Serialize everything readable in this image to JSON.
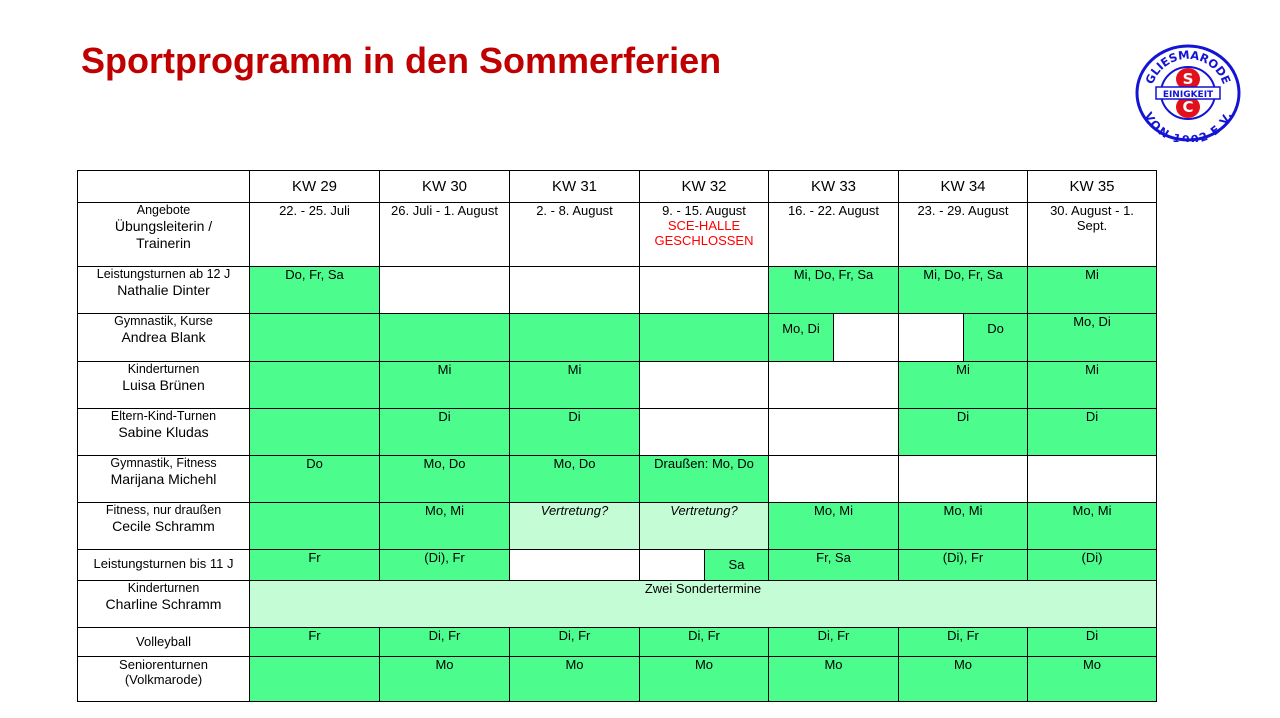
{
  "title": "Sportprogramm in den Sommerferien",
  "logo": {
    "top_text": "GLIESMARODE",
    "middle_text": "EINIGKEIT",
    "bottom_text": "VON 1902 E.V.",
    "letters": [
      "S",
      "C"
    ]
  },
  "colors": {
    "title": "#c00000",
    "green": "#4cfc8c",
    "light_green": "#c4fcd6",
    "logo_blue": "#1414d4",
    "logo_red": "#e0101c"
  },
  "weeks": [
    "KW 29",
    "KW 30",
    "KW 31",
    "KW 32",
    "KW 33",
    "KW 34",
    "KW 35"
  ],
  "dates": [
    "22. - 25. Juli",
    "26. Juli - 1. August",
    "2. - 8. August",
    "9. - 15. August",
    "16. - 22. August",
    "23. - 29. August",
    "30. August - 1. Sept."
  ],
  "kw32_note_line1": "SCE-HALLE",
  "kw32_note_line2": "GESCHLOSSEN",
  "header_label": {
    "line1": "Angebote",
    "line2": "Übungsleiterin /",
    "line3": "Trainerin"
  },
  "rows": {
    "leistung12": {
      "sub": "Leistungsturnen ab 12 J",
      "name": "Nathalie Dinter",
      "kw29": "Do, Fr, Sa",
      "kw33": "Mi, Do, Fr, Sa",
      "kw34": "Mi, Do, Fr, Sa",
      "kw35": "Mi"
    },
    "gymkurse": {
      "sub": "Gymnastik, Kurse",
      "name": "Andrea Blank",
      "kw33a": "Mo, Di",
      "kw34b": "Do",
      "kw35": "Mo, Di"
    },
    "kinder": {
      "sub": "Kinderturnen",
      "name": "Luisa Brünen",
      "kw30": "Mi",
      "kw31": "Mi",
      "kw34": "Mi",
      "kw35": "Mi"
    },
    "eltern": {
      "sub": "Eltern-Kind-Turnen",
      "name": "Sabine Kludas",
      "kw30": "Di",
      "kw31": "Di",
      "kw34": "Di",
      "kw35": "Di"
    },
    "gymfit": {
      "sub": "Gymnastik, Fitness",
      "name": "Marijana Michehl",
      "kw29": "Do",
      "kw30": "Mo, Do",
      "kw31": "Mo, Do",
      "kw32": "Draußen: Mo, Do"
    },
    "fitness": {
      "sub": "Fitness, nur draußen",
      "name": "Cecile Schramm",
      "kw30": "Mo, Mi",
      "kw31": "Vertretung?",
      "kw32": "Vertretung?",
      "kw33": "Mo, Mi",
      "kw34": "Mo, Mi",
      "kw35": "Mo, Mi"
    },
    "leistung11": {
      "sub": "Leistungsturnen bis 11 J",
      "kw29": "Fr",
      "kw30": "(Di), Fr",
      "kw32b": "Sa",
      "kw33": "Fr, Sa",
      "kw34": "(Di), Fr",
      "kw35": "(Di)"
    },
    "kinder2": {
      "sub": "Kinderturnen",
      "name": "Charline Schramm",
      "span": "Zwei Sondertermine"
    },
    "volley": {
      "sub": "Volleyball",
      "kw29": "Fr",
      "kw30": "Di, Fr",
      "kw31": "Di, Fr",
      "kw32": "Di, Fr",
      "kw33": "Di, Fr",
      "kw34": "Di, Fr",
      "kw35": "Di"
    },
    "senioren": {
      "sub": "Seniorenturnen",
      "sub2": "(Volkmarode)",
      "kw30": "Mo",
      "kw31": "Mo",
      "kw32": "Mo",
      "kw33": "Mo",
      "kw34": "Mo",
      "kw35": "Mo"
    }
  }
}
